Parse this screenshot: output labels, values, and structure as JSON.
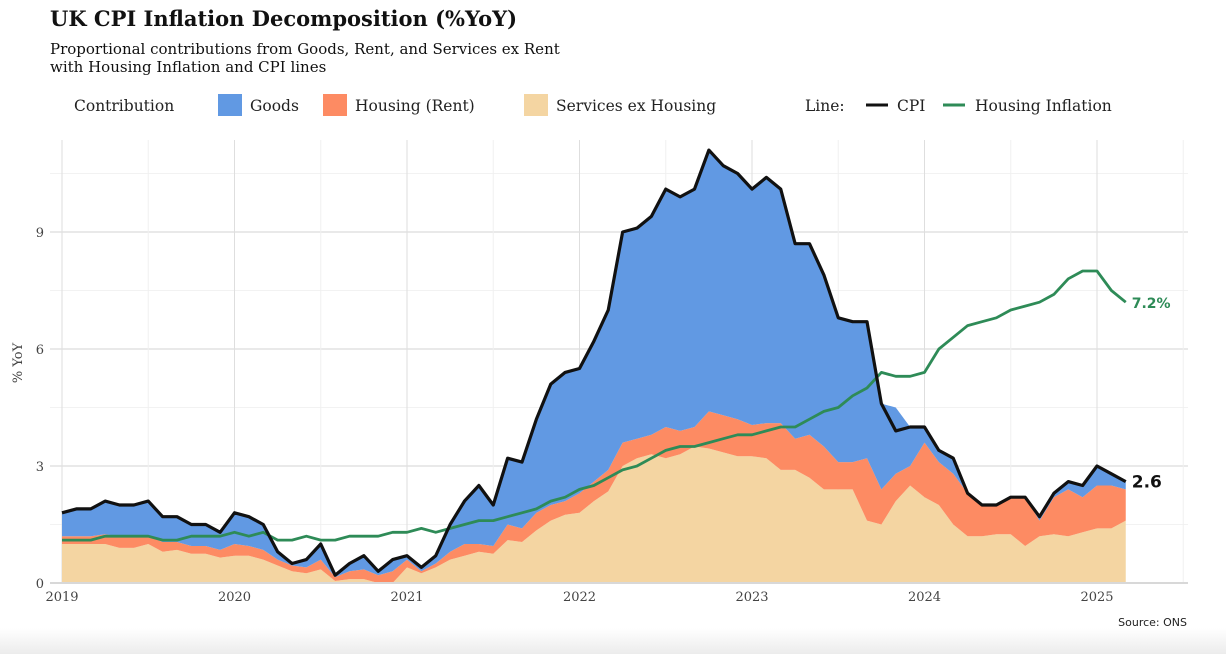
{
  "chart_data": {
    "type": "area",
    "title": "UK CPI Inflation Decomposition (%YoY)",
    "subtitle_lines": [
      "Proportional contributions from Goods, Rent, and Services ex Rent",
      "with Housing Inflation and CPI lines"
    ],
    "ylabel": "% YoY",
    "xlabel": "",
    "ylim": [
      0,
      11.4
    ],
    "yticks": [
      "0",
      "3",
      "6",
      "9"
    ],
    "ytick_values": [
      0,
      3,
      6,
      9
    ],
    "xticks": [
      "2019",
      "2020",
      "2021",
      "2022",
      "2023",
      "2024",
      "2025"
    ],
    "x_start": "2019-01",
    "x_frequency": "monthly",
    "x_range_years": [
      2018.95,
      2025.55
    ],
    "grid": true,
    "legend": {
      "placement": "top",
      "contribution_title": "Contribution",
      "line_title": "Line:",
      "items": [
        "Goods",
        "Housing (Rent)",
        "Services ex Housing"
      ],
      "line_items": [
        "CPI",
        "Housing Inflation"
      ]
    },
    "colors": {
      "Goods": "#6199e3",
      "Housing (Rent)": "#fd8b63",
      "Services ex Housing": "#f4d5a2",
      "CPI": "#111111",
      "Housing Inflation": "#2e8b57"
    },
    "stacked_series": [
      {
        "name": "Services ex Housing",
        "values": [
          1.0,
          1.0,
          1.0,
          1.0,
          0.9,
          0.9,
          1.0,
          0.8,
          0.85,
          0.75,
          0.75,
          0.65,
          0.7,
          0.7,
          0.6,
          0.45,
          0.3,
          0.25,
          0.35,
          0.05,
          0.1,
          0.1,
          0.0,
          0.0,
          0.4,
          0.25,
          0.4,
          0.6,
          0.7,
          0.8,
          0.75,
          1.1,
          1.05,
          1.35,
          1.6,
          1.75,
          1.8,
          2.1,
          2.35,
          3.0,
          3.2,
          3.3,
          3.2,
          3.3,
          3.5,
          3.45,
          3.35,
          3.25,
          3.25,
          3.2,
          2.9,
          2.9,
          2.7,
          2.4,
          2.4,
          2.4,
          1.6,
          1.5,
          2.1,
          2.5,
          2.2,
          2.0,
          1.5,
          1.2,
          1.2,
          1.25,
          1.25,
          0.95,
          1.2,
          1.25,
          1.2,
          1.3,
          1.4,
          1.4,
          1.6
        ]
      },
      {
        "name": "Housing (Rent)",
        "values": [
          0.2,
          0.2,
          0.2,
          0.25,
          0.3,
          0.3,
          0.2,
          0.25,
          0.2,
          0.2,
          0.2,
          0.2,
          0.3,
          0.25,
          0.25,
          0.15,
          0.15,
          0.15,
          0.25,
          0.1,
          0.2,
          0.25,
          0.2,
          0.3,
          0.2,
          0.05,
          0.1,
          0.2,
          0.3,
          0.2,
          0.2,
          0.4,
          0.35,
          0.45,
          0.4,
          0.35,
          0.5,
          0.5,
          0.55,
          0.6,
          0.5,
          0.5,
          0.8,
          0.6,
          0.5,
          0.95,
          0.95,
          0.95,
          0.8,
          0.9,
          1.2,
          0.8,
          1.1,
          1.1,
          0.7,
          0.7,
          1.6,
          0.9,
          0.7,
          0.5,
          1.4,
          1.1,
          1.3,
          1.1,
          0.8,
          0.75,
          0.95,
          1.25,
          0.4,
          0.95,
          1.2,
          0.9,
          1.1,
          1.1,
          0.8
        ]
      },
      {
        "name": "Goods",
        "values": [
          0.6,
          0.7,
          0.7,
          0.85,
          0.8,
          0.8,
          0.9,
          0.65,
          0.65,
          0.55,
          0.55,
          0.45,
          0.8,
          0.75,
          0.65,
          0.2,
          0.05,
          0.2,
          0.4,
          0.05,
          0.2,
          0.35,
          0.1,
          0.3,
          0.1,
          0.1,
          0.2,
          0.7,
          1.1,
          1.5,
          1.05,
          1.7,
          1.7,
          2.4,
          3.1,
          3.3,
          3.2,
          3.6,
          4.1,
          5.4,
          5.4,
          5.6,
          6.1,
          6.0,
          6.1,
          6.7,
          6.4,
          6.3,
          6.05,
          6.3,
          6.0,
          5.0,
          4.9,
          4.4,
          3.7,
          3.6,
          3.5,
          2.2,
          1.7,
          1.0,
          0.4,
          0.3,
          0.4,
          0.0,
          0.0,
          0.0,
          0.0,
          0.0,
          0.1,
          0.1,
          0.2,
          0.3,
          0.5,
          0.3,
          0.2
        ]
      }
    ],
    "line_series": [
      {
        "name": "CPI",
        "end_label": "2.6",
        "values": [
          1.8,
          1.9,
          1.9,
          2.1,
          2.0,
          2.0,
          2.1,
          1.7,
          1.7,
          1.5,
          1.5,
          1.3,
          1.8,
          1.7,
          1.5,
          0.8,
          0.5,
          0.6,
          1.0,
          0.2,
          0.5,
          0.7,
          0.3,
          0.6,
          0.7,
          0.4,
          0.7,
          1.5,
          2.1,
          2.5,
          2.0,
          3.2,
          3.1,
          4.2,
          5.1,
          5.4,
          5.5,
          6.2,
          7.0,
          9.0,
          9.1,
          9.4,
          10.1,
          9.9,
          10.1,
          11.1,
          10.7,
          10.5,
          10.1,
          10.4,
          10.1,
          8.7,
          8.7,
          7.9,
          6.8,
          6.7,
          6.7,
          4.6,
          3.9,
          4.0,
          4.0,
          3.4,
          3.2,
          2.3,
          2.0,
          2.0,
          2.2,
          2.2,
          1.7,
          2.3,
          2.6,
          2.5,
          3.0,
          2.8,
          2.6
        ]
      },
      {
        "name": "Housing Inflation",
        "end_label": "7.2%",
        "values": [
          1.1,
          1.1,
          1.1,
          1.2,
          1.2,
          1.2,
          1.2,
          1.1,
          1.1,
          1.2,
          1.2,
          1.2,
          1.3,
          1.2,
          1.3,
          1.1,
          1.1,
          1.2,
          1.1,
          1.1,
          1.2,
          1.2,
          1.2,
          1.3,
          1.3,
          1.4,
          1.3,
          1.4,
          1.5,
          1.6,
          1.6,
          1.7,
          1.8,
          1.9,
          2.1,
          2.2,
          2.4,
          2.5,
          2.7,
          2.9,
          3.0,
          3.2,
          3.4,
          3.5,
          3.5,
          3.6,
          3.7,
          3.8,
          3.8,
          3.9,
          4.0,
          4.0,
          4.2,
          4.4,
          4.5,
          4.8,
          5.0,
          5.4,
          5.3,
          5.3,
          5.4,
          6.0,
          6.3,
          6.6,
          6.7,
          6.8,
          7.0,
          7.1,
          7.2,
          7.4,
          7.8,
          8.0,
          8.0,
          7.5,
          7.2
        ]
      }
    ],
    "source": "Source: ONS"
  }
}
